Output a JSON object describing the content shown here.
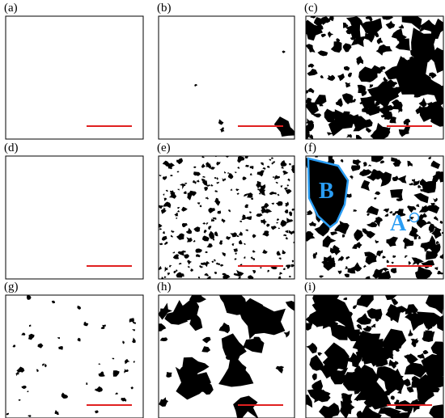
{
  "panels": [
    {
      "label": "(a)"
    },
    {
      "label": "(b)"
    },
    {
      "label": "(c)"
    },
    {
      "label": "(d)"
    },
    {
      "label": "(e)"
    },
    {
      "label": "(f)",
      "regions": [
        "B",
        "A"
      ]
    },
    {
      "label": "(g)"
    },
    {
      "label": "(h)"
    },
    {
      "label": "(i)"
    }
  ]
}
